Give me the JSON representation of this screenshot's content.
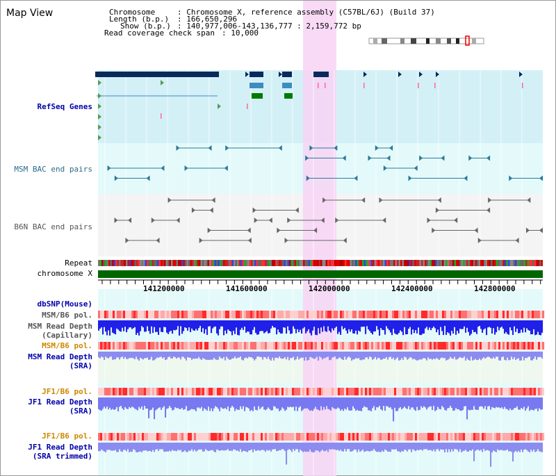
{
  "page_title": "Map View",
  "info": {
    "chromosome_key": "Chromosome",
    "chromosome_value": ": Chromosome X, reference assembly (C57BL/6J) (Build 37)",
    "length_key": "Length (b.p.)",
    "length_value": ": 166,650,296",
    "show_key": "Show (b.p.)",
    "show_value": ": 140,977,006-143,136,777 : 2,159,772 bp",
    "coverage_key": "Read coverage check span",
    "coverage_value": ": 10,000"
  },
  "tracks": {
    "refseq": "RefSeq Genes",
    "msm_bac": "MSM BAC end pairs",
    "b6n_bac": "B6N BAC end pairs",
    "repeat": "Repeat",
    "chromosome": "chromosome X",
    "dbsnp": "dbSNP(Mouse)",
    "msm_b6_pol_1": "MSM/B6 pol.",
    "msm_read_depth_cap_1": "MSM Read Depth",
    "msm_read_depth_cap_2": "(Capillary)",
    "msm_b6_pol_2": "MSM/B6 pol.",
    "msm_read_depth_sra_1": "MSM Read Depth",
    "msm_read_depth_sra_2": "(SRA)",
    "jf1_b6_pol_1": "JF1/B6 pol.",
    "jf1_read_depth_sra_1": "JF1 Read Depth",
    "jf1_read_depth_sra_2": "(SRA)",
    "jf1_b6_pol_2": "JF1/B6 pol.",
    "jf1_read_depth_trim_1": "JF1 Read Depth",
    "jf1_read_depth_trim_2": "(SRA trimmed)"
  },
  "axis": {
    "ticks": [
      "141200000",
      "141600000",
      "142000000",
      "142400000",
      "142800000"
    ]
  },
  "colors": {
    "refseq_bg": "#d4f0f7",
    "msm_bac_bg": "#e4fafa",
    "b6n_bac_bg": "#f4f4f4",
    "highlight": "#f8d4f4",
    "chromosome_bar": "#006600",
    "gene_navy": "#0a2a5a",
    "gene_blue": "#3c8cc0",
    "gene_green": "#007a00",
    "bac_teal": "#2a7a9a",
    "bac_gray": "#666666",
    "depth_blue": "#2020e8",
    "depth_light": "#7878f0",
    "label_blue": "#0000aa",
    "label_orange": "#cc8800",
    "label_teal": "#2a6a88",
    "label_gray": "#555555"
  }
}
